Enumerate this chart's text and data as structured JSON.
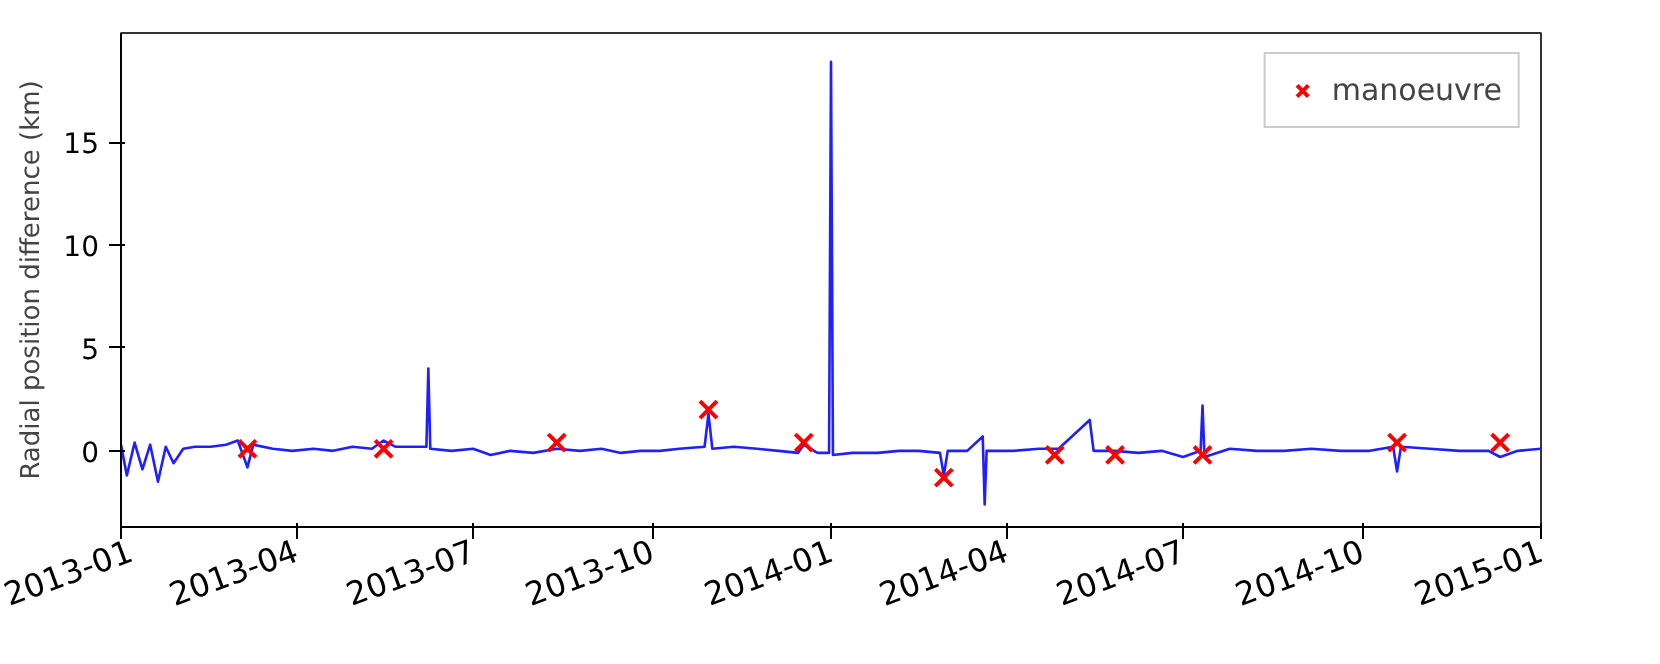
{
  "chart_data": {
    "type": "line",
    "ylabel": "Radial position difference (km)",
    "xlim": [
      "2013-01-01",
      "2015-01-01"
    ],
    "ylim": [
      -3.7,
      20.3
    ],
    "xticks": [
      "2013-01",
      "2013-04",
      "2013-07",
      "2013-10",
      "2014-01",
      "2014-04",
      "2014-07",
      "2014-10",
      "2015-01"
    ],
    "yticks": [
      0,
      5,
      10,
      15
    ],
    "grid": false,
    "legend": "top right",
    "series": [
      {
        "color": "#2020ff",
        "line_style": "solid",
        "x": [
          "2013-01-01",
          "2013-01-04",
          "2013-01-08",
          "2013-01-12",
          "2013-01-16",
          "2013-01-20",
          "2013-01-24",
          "2013-01-28",
          "2013-02-02",
          "2013-02-08",
          "2013-02-16",
          "2013-02-24",
          "2013-03-02",
          "2013-03-07",
          "2013-03-10",
          "2013-03-20",
          "2013-03-30",
          "2013-04-10",
          "2013-04-20",
          "2013-04-30",
          "2013-05-10",
          "2013-05-16",
          "2013-05-22",
          "2013-06-01",
          "2013-06-07",
          "2013-06-08",
          "2013-06-09",
          "2013-06-20",
          "2013-07-01",
          "2013-07-10",
          "2013-07-20",
          "2013-08-01",
          "2013-08-13",
          "2013-08-25",
          "2013-09-05",
          "2013-09-15",
          "2013-09-25",
          "2013-10-05",
          "2013-10-15",
          "2013-10-28",
          "2013-10-30",
          "2013-11-01",
          "2013-11-12",
          "2013-11-24",
          "2013-12-05",
          "2013-12-15",
          "2013-12-18",
          "2013-12-25",
          "2013-12-31",
          "2014-01-01",
          "2014-01-02",
          "2014-01-12",
          "2014-01-25",
          "2014-02-05",
          "2014-02-15",
          "2014-02-26",
          "2014-02-28",
          "2014-03-02",
          "2014-03-12",
          "2014-03-20",
          "2014-03-21",
          "2014-03-22",
          "2014-04-05",
          "2014-04-18",
          "2014-04-28",
          "2014-05-14",
          "2014-05-16",
          "2014-05-27",
          "2014-06-08",
          "2014-06-20",
          "2014-07-01",
          "2014-07-10",
          "2014-07-11",
          "2014-07-12",
          "2014-07-25",
          "2014-08-08",
          "2014-08-22",
          "2014-09-05",
          "2014-09-20",
          "2014-10-05",
          "2014-10-17",
          "2014-10-19",
          "2014-10-21",
          "2014-11-05",
          "2014-11-20",
          "2014-12-05",
          "2014-12-11",
          "2014-12-20",
          "2015-01-01"
        ],
        "values": [
          0.3,
          -1.2,
          0.4,
          -0.9,
          0.3,
          -1.5,
          0.2,
          -0.6,
          0.1,
          0.2,
          0.2,
          0.3,
          0.5,
          -0.8,
          0.3,
          0.1,
          0.0,
          0.1,
          0.0,
          0.2,
          0.1,
          0.5,
          0.2,
          0.2,
          0.2,
          4.0,
          0.1,
          0.0,
          0.1,
          -0.2,
          0.0,
          -0.1,
          0.1,
          0.0,
          0.1,
          -0.1,
          0.0,
          0.0,
          0.1,
          0.2,
          1.8,
          0.1,
          0.2,
          0.1,
          0.0,
          -0.1,
          0.3,
          -0.1,
          -0.1,
          18.9,
          -0.2,
          -0.1,
          -0.1,
          0.0,
          0.0,
          -0.1,
          -1.2,
          0.0,
          0.0,
          0.7,
          -2.6,
          0.0,
          0.0,
          0.1,
          0.1,
          1.5,
          0.0,
          0.0,
          -0.1,
          0.0,
          -0.3,
          0.0,
          2.2,
          -0.3,
          0.1,
          0.0,
          0.0,
          0.1,
          0.0,
          0.0,
          0.2,
          -1.0,
          0.2,
          0.1,
          0.0,
          0.0,
          -0.3,
          0.0,
          0.1
        ]
      },
      {
        "type": "scatter",
        "name": "manoeuvre",
        "color": "#ff0000",
        "marker": "cross",
        "x": [
          "2013-03-07",
          "2013-05-16",
          "2013-08-13",
          "2013-10-30",
          "2013-12-18",
          "2014-02-28",
          "2014-04-26",
          "2014-05-27",
          "2014-07-11",
          "2014-10-19",
          "2014-12-11"
        ],
        "values": [
          0.1,
          0.1,
          0.4,
          2.0,
          0.4,
          -1.3,
          -0.2,
          -0.2,
          -0.2,
          0.4,
          0.4
        ]
      }
    ]
  }
}
